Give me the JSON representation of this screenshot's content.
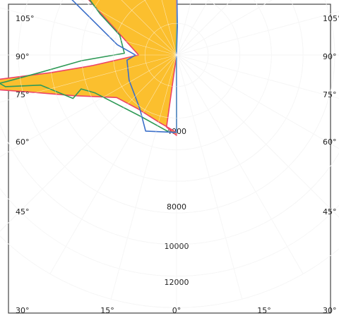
{
  "chart_data": {
    "type": "polar-photometric",
    "title": "",
    "angle_unit": "degrees",
    "radial_unit": "",
    "left_angle_labels": [
      "105°",
      "90°",
      "75°",
      "60°",
      "45°",
      "30°"
    ],
    "right_angle_labels": [
      "105°",
      "90°",
      "75°",
      "60°",
      "45°",
      "30°"
    ],
    "bottom_angle_labels": [
      "15°",
      "0°",
      "15°"
    ],
    "radial_tick_labels": [
      "4000",
      "8000",
      "10000",
      "12000"
    ],
    "grid": true,
    "series": [
      {
        "stroke": "#ee4466",
        "fill": "#fbbf2e",
        "points": [
          [
            0,
            0
          ],
          [
            0.4,
            2000
          ],
          [
            -0.4,
            7800
          ],
          [
            -10.6,
            8920
          ],
          [
            -21.5,
            10700
          ],
          [
            -31.6,
            12800
          ],
          [
            -44.6,
            10800
          ],
          [
            -56.4,
            7200
          ],
          [
            -69.1,
            3920
          ],
          [
            -90,
            2400
          ],
          [
            -97.2,
            5380
          ],
          [
            -98,
            8000
          ],
          [
            -97.8,
            11400
          ],
          [
            -99.7,
            12600
          ],
          [
            -100.9,
            11600
          ],
          [
            -104.1,
            9600
          ],
          [
            -111.6,
            7000
          ],
          [
            -125.4,
            4650
          ],
          [
            -143.9,
            4200
          ],
          [
            -165.5,
            4400
          ],
          [
            -180,
            4900
          ],
          [
            -180,
            5100
          ],
          [
            -172.1,
            4600
          ]
        ]
      },
      {
        "stroke": "#2f9a57",
        "fill": "none",
        "points": [
          [
            -180,
            4900
          ],
          [
            -174.3,
            4900
          ],
          [
            -149.7,
            4500
          ],
          [
            -114.8,
            5700
          ],
          [
            -109.6,
            6400
          ],
          [
            -112.8,
            7100
          ],
          [
            -102.5,
            8800
          ],
          [
            -100.5,
            11000
          ],
          [
            -94.8,
            12500
          ],
          [
            -95.8,
            12600
          ],
          [
            -99.5,
            12400
          ],
          [
            -98.9,
            10900
          ],
          [
            -97.3,
            8700
          ],
          [
            -93.4,
            6000
          ],
          [
            -88.1,
            3300
          ],
          [
            -70.8,
            3800
          ],
          [
            -61.6,
            5500
          ],
          [
            -54.3,
            7600
          ],
          [
            -45,
            10000
          ],
          [
            -31.9,
            12500
          ],
          [
            -23.6,
            12000
          ],
          [
            -12,
            9600
          ],
          [
            -2.5,
            9200
          ],
          [
            0.4,
            7000
          ],
          [
            0.5,
            2100
          ],
          [
            -1.6,
            600
          ]
        ]
      },
      {
        "stroke": "#3b6fc9",
        "fill": "none",
        "points": [
          [
            -180,
            4900
          ],
          [
            -157.9,
            5200
          ],
          [
            -145.4,
            4100
          ],
          [
            -118.1,
            3400
          ],
          [
            -95.9,
            3150
          ],
          [
            -90.1,
            2600
          ],
          [
            -80.1,
            3800
          ],
          [
            -61.6,
            7700
          ],
          [
            -46.4,
            9100
          ],
          [
            -36.8,
            10400
          ],
          [
            -24.3,
            10700
          ],
          [
            -5,
            10200
          ],
          [
            0,
            5800
          ],
          [
            1.7,
            1800
          ],
          [
            0,
            0
          ]
        ]
      }
    ]
  }
}
